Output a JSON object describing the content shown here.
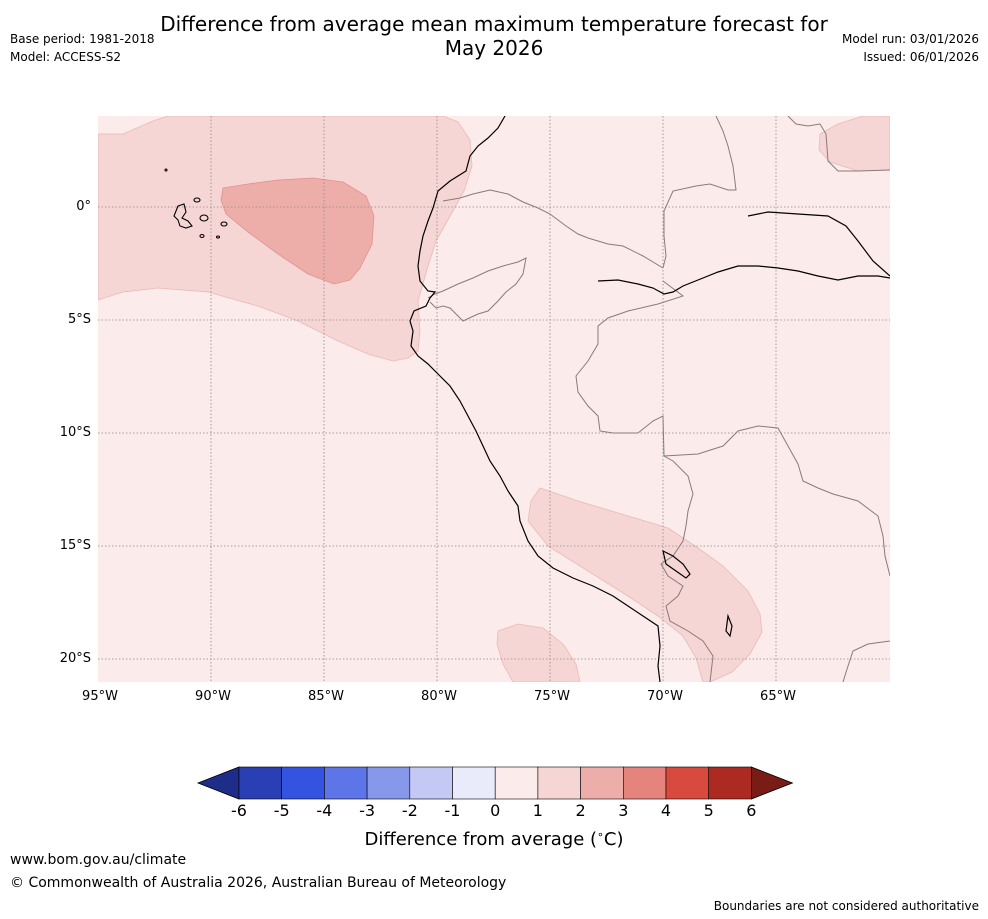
{
  "title_line1": "Difference from average mean maximum temperature forecast for",
  "title_line2": "May 2026",
  "base_period": "Base period: 1981-2018",
  "model": "Model: ACCESS-S2",
  "model_run": "Model run: 03/01/2026",
  "issued": "Issued: 06/01/2026",
  "lat_labels": [
    "0°",
    "5°S",
    "10°S",
    "15°S",
    "20°S"
  ],
  "lon_labels": [
    "95°W",
    "90°W",
    "85°W",
    "80°W",
    "75°W",
    "70°W",
    "65°W"
  ],
  "colorbar": {
    "ticks": [
      "-6",
      "-5",
      "-4",
      "-3",
      "-2",
      "-1",
      "0",
      "1",
      "2",
      "3",
      "4",
      "5",
      "6"
    ],
    "colors": [
      "#1f2d8a",
      "#2b3fb4",
      "#3453e0",
      "#5e75e8",
      "#8797ea",
      "#c3c9f4",
      "#e9ebfb",
      "#fbebea",
      "#f6d6d4",
      "#edaeaa",
      "#e5847c",
      "#d94a3e",
      "#ad2a22",
      "#7a1c16"
    ],
    "label": "Difference from average ($^\\circ$C)",
    "label_text": "Difference from average (",
    "label_unit": "C)"
  },
  "footer": {
    "url": "www.bom.gov.au/climate",
    "copyright": "© Commonwealth of Australia 2026, Australian Bureau of Meteorology",
    "disclaimer": "Boundaries are not considered authoritative"
  },
  "colors": {
    "base_fill": "#fbebea",
    "band_1_2": "#f6d6d4",
    "band_2_3": "#edaeaa",
    "grid": "#8a8a8a",
    "coast": "#000000",
    "border": "#8a7a7a"
  }
}
